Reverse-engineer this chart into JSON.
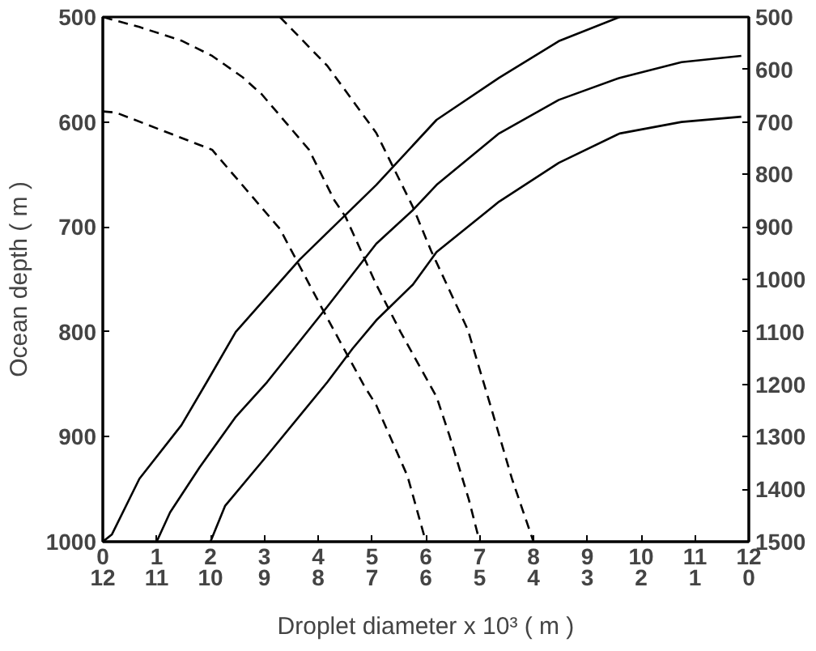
{
  "chart_data": {
    "type": "line",
    "xlabel": "Droplet diameter x 10³ ( m )",
    "ylabel": "Ocean depth ( m )",
    "xlim": [
      0,
      12
    ],
    "xticks": [
      0,
      1,
      2,
      3,
      4,
      5,
      6,
      7,
      8,
      9,
      10,
      11,
      12
    ],
    "x2lim": [
      12,
      0
    ],
    "x2ticks": [
      12,
      11,
      10,
      9,
      8,
      7,
      6,
      5,
      4,
      3,
      2,
      1,
      0
    ],
    "ylim": [
      1000,
      500
    ],
    "yticks": [
      500,
      600,
      700,
      800,
      900,
      1000
    ],
    "y2lim": [
      1500,
      500
    ],
    "y2ticks": [
      500,
      600,
      700,
      800,
      900,
      1000,
      1100,
      1200,
      1300,
      1400,
      1500
    ],
    "marker": "none",
    "series": [
      {
        "color": "#000000",
        "line_style": "solid",
        "x": [
          0,
          0.17,
          0.68,
          1.46,
          1.93,
          2.47,
          3.66,
          4.64,
          5.08,
          6.2,
          7.36,
          8.47,
          9.6
        ],
        "values": [
          1000,
          993,
          940,
          889,
          848,
          800,
          731,
          682,
          660,
          598,
          558,
          523,
          500
        ]
      },
      {
        "color": "#000000",
        "line_style": "solid",
        "x": [
          1,
          1.25,
          1.8,
          2.47,
          3.05,
          4.17,
          5.08,
          5.76,
          6.2,
          7.36,
          8.47,
          9.6,
          10.75,
          11.86
        ],
        "values": [
          1000,
          972,
          929,
          881,
          848,
          776,
          716,
          684,
          660,
          611,
          579,
          558,
          543,
          537
        ]
      },
      {
        "color": "#000000",
        "line_style": "solid",
        "x": [
          2,
          2.27,
          3.05,
          4.17,
          4.64,
          5.08,
          5.76,
          6.2,
          7.36,
          8.47,
          9.6,
          10.75,
          11.86
        ],
        "values": [
          1000,
          966,
          918,
          848,
          816,
          789,
          755,
          724,
          676,
          639,
          611,
          600,
          595
        ]
      },
      {
        "color": "#000000",
        "line_style": "dashed",
        "axis": "y2",
        "x": [
          0,
          0.24,
          2.03,
          3.29,
          4.17,
          4.85,
          5.08,
          5.66,
          6
        ],
        "values": [
          680,
          682,
          753,
          904,
          1074,
          1202,
          1240,
          1375,
          1500
        ]
      },
      {
        "color": "#000000",
        "line_style": "dashed",
        "axis": "y2",
        "x": [
          0,
          0.68,
          1.46,
          2.03,
          2.6,
          2.95,
          3.49,
          3.83,
          4.3,
          4.51,
          5.08,
          5.53,
          6.2,
          6.44,
          6.8,
          7
        ],
        "values": [
          500,
          519,
          545,
          574,
          615,
          647,
          712,
          753,
          849,
          881,
          1010,
          1100,
          1224,
          1298,
          1420,
          1500
        ]
      },
      {
        "color": "#000000",
        "line_style": "dashed",
        "axis": "y2",
        "x": [
          3.29,
          4.17,
          5.08,
          5.76,
          6.1,
          6.78,
          7.22,
          7.6,
          8
        ],
        "values": [
          500,
          593,
          721,
          862,
          946,
          1096,
          1247,
          1380,
          1500
        ]
      }
    ]
  }
}
